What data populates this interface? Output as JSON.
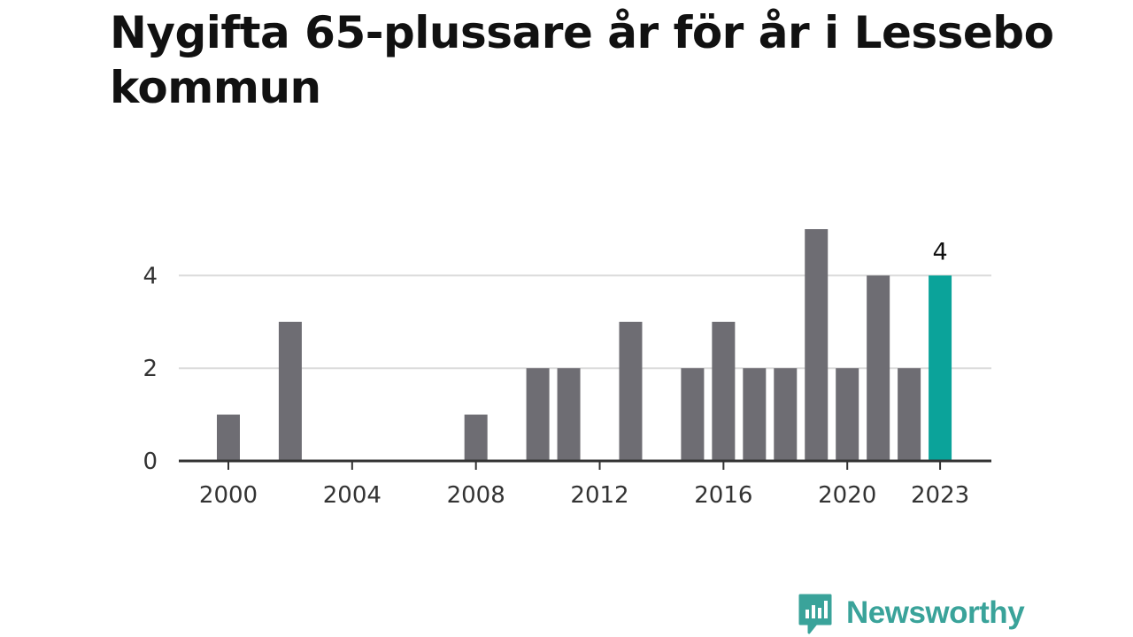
{
  "title": "Nygifta 65-plussare år för år i Lessebo kommun",
  "brand": {
    "name": "Newsworthy",
    "logo_icon": "bar-chart-speech-bubble-icon",
    "color": "#3aa39a"
  },
  "chart_data": {
    "type": "bar",
    "title": "Nygifta 65-plussare år för år i Lessebo kommun",
    "xlabel": "",
    "ylabel": "",
    "categories": [
      2000,
      2001,
      2002,
      2003,
      2004,
      2005,
      2006,
      2007,
      2008,
      2009,
      2010,
      2011,
      2012,
      2013,
      2014,
      2015,
      2016,
      2017,
      2018,
      2019,
      2020,
      2021,
      2022,
      2023
    ],
    "values": [
      1,
      0,
      3,
      0,
      0,
      0,
      0,
      0,
      1,
      0,
      2,
      2,
      0,
      3,
      0,
      2,
      3,
      2,
      2,
      5,
      2,
      4,
      2,
      4
    ],
    "x_ticks": [
      "2000",
      "2004",
      "2008",
      "2012",
      "2016",
      "2020",
      "2023"
    ],
    "y_ticks": [
      "0",
      "2",
      "4"
    ],
    "ylim": [
      0,
      5
    ],
    "grid": true,
    "bar_color": "#6e6d73",
    "highlight_color": "#0ba39a",
    "highlight_category": 2023,
    "highlight_label": "4"
  }
}
